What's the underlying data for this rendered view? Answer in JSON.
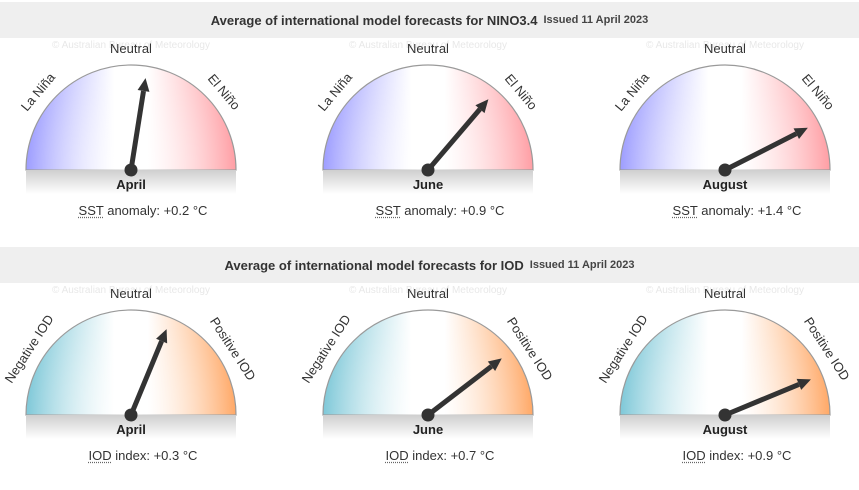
{
  "sections": [
    {
      "title": "Average of international model forecasts for NINO3.4",
      "issued": "Issued 11 April 2023",
      "labels": {
        "left": "La Niña",
        "center": "Neutral",
        "right": "El Niño"
      },
      "colors": {
        "left": "#9d9dff",
        "right": "#ff9ea4"
      },
      "abbr": "SST",
      "metric_suffix": "anomaly:",
      "unit": "°C",
      "gauges": [
        {
          "month": "April",
          "value": "+0.2",
          "needle": 0.2
        },
        {
          "month": "June",
          "value": "+0.9",
          "needle": 0.9
        },
        {
          "month": "August",
          "value": "+1.4",
          "needle": 1.4
        }
      ]
    },
    {
      "title": "Average of international model forecasts for IOD",
      "issued": "Issued 11 April 2023",
      "labels": {
        "left": "Negative IOD",
        "center": "Neutral",
        "right": "Positive IOD"
      },
      "colors": {
        "left": "#7ec8d8",
        "right": "#ffa866"
      },
      "abbr": "IOD",
      "metric_suffix": "index:",
      "unit": "°C",
      "gauges": [
        {
          "month": "April",
          "value": "+0.3",
          "needle": 0.3
        },
        {
          "month": "June",
          "value": "+0.7",
          "needle": 0.7
        },
        {
          "month": "August",
          "value": "+0.9",
          "needle": 0.9
        }
      ]
    }
  ],
  "gauge_scale": {
    "nino_max": 2.0,
    "iod_max": 1.2
  },
  "watermark": "© Australian Bureau of Meteorology"
}
